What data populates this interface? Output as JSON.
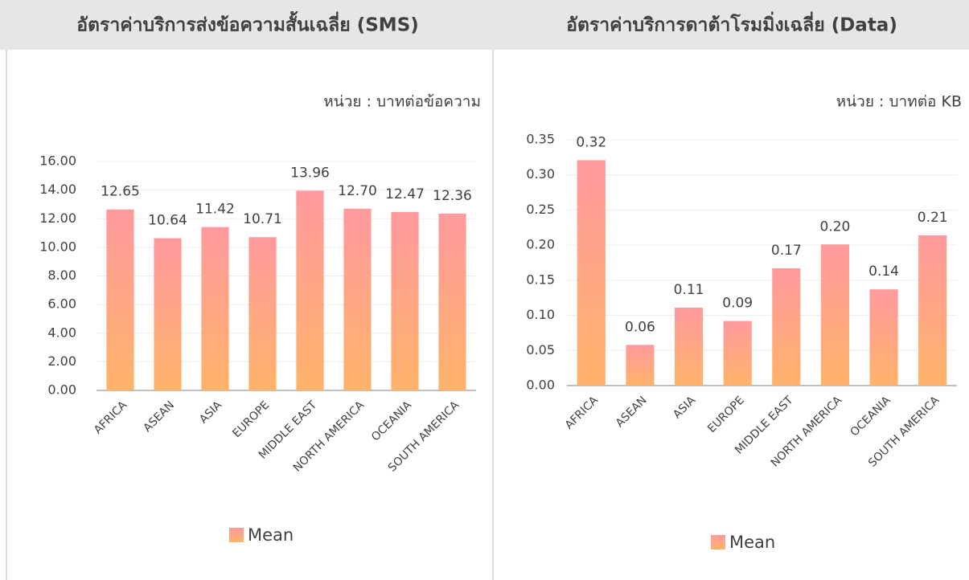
{
  "chart_data": [
    {
      "type": "bar",
      "title": "อัตราค่าบริการส่งข้อความสั้นเฉลี่ย (SMS)",
      "unit": "หน่วย : บาทต่อข้อความ",
      "categories": [
        "AFRICA",
        "ASEAN",
        "ASIA",
        "EUROPE",
        "MIDDLE EAST",
        "NORTH AMERICA",
        "OCEANIA",
        "SOUTH AMERICA"
      ],
      "series": [
        {
          "name": "Mean",
          "color": {
            "top": "#ff9a9e",
            "bottom": "#ffb36a"
          },
          "values": [
            12.65,
            10.64,
            11.42,
            10.71,
            13.96,
            12.7,
            12.47,
            12.36
          ],
          "value_labels": [
            "12.65",
            "10.64",
            "11.42",
            "10.71",
            "13.96",
            "12.70",
            "12.47",
            "12.36"
          ]
        }
      ],
      "ylim": [
        0,
        16
      ],
      "yticks": [
        {
          "value": 0,
          "label": "0.00"
        },
        {
          "value": 2,
          "label": "2.00"
        },
        {
          "value": 4,
          "label": "4.00"
        },
        {
          "value": 6,
          "label": "6.00"
        },
        {
          "value": 8,
          "label": "8.00"
        },
        {
          "value": 10,
          "label": "10.00"
        },
        {
          "value": 12,
          "label": "12.00"
        },
        {
          "value": 14,
          "label": "14.00"
        },
        {
          "value": 16,
          "label": "16.00"
        }
      ],
      "grid": true,
      "legend": "bottom"
    },
    {
      "type": "bar",
      "title": "อัตราค่าบริการดาต้าโรมมิ่งเฉลี่ย (Data)",
      "unit": "หน่วย : บาทต่อ KB",
      "categories": [
        "AFRICA",
        "ASEAN",
        "ASIA",
        "EUROPE",
        "MIDDLE EAST",
        "NORTH AMERICA",
        "OCEANIA",
        "SOUTH AMERICA"
      ],
      "series": [
        {
          "name": "Mean",
          "color": {
            "top": "#ff9a9e",
            "bottom": "#ffb36a"
          },
          "values": [
            0.321,
            0.058,
            0.111,
            0.092,
            0.167,
            0.201,
            0.137,
            0.214
          ],
          "value_labels": [
            "0.32",
            "0.06",
            "0.11",
            "0.09",
            "0.17",
            "0.20",
            "0.14",
            "0.21"
          ]
        }
      ],
      "ylim": [
        0,
        0.35
      ],
      "yticks": [
        {
          "value": 0,
          "label": "0.00"
        },
        0.05,
        {
          "value": 0.1,
          "label": "0.10"
        },
        0.15,
        {
          "value": 0.2,
          "label": "0.20"
        },
        0.25,
        {
          "value": 0.3,
          "label": "0.30"
        },
        0.35
      ],
      "grid": true,
      "legend": "bottom"
    }
  ]
}
